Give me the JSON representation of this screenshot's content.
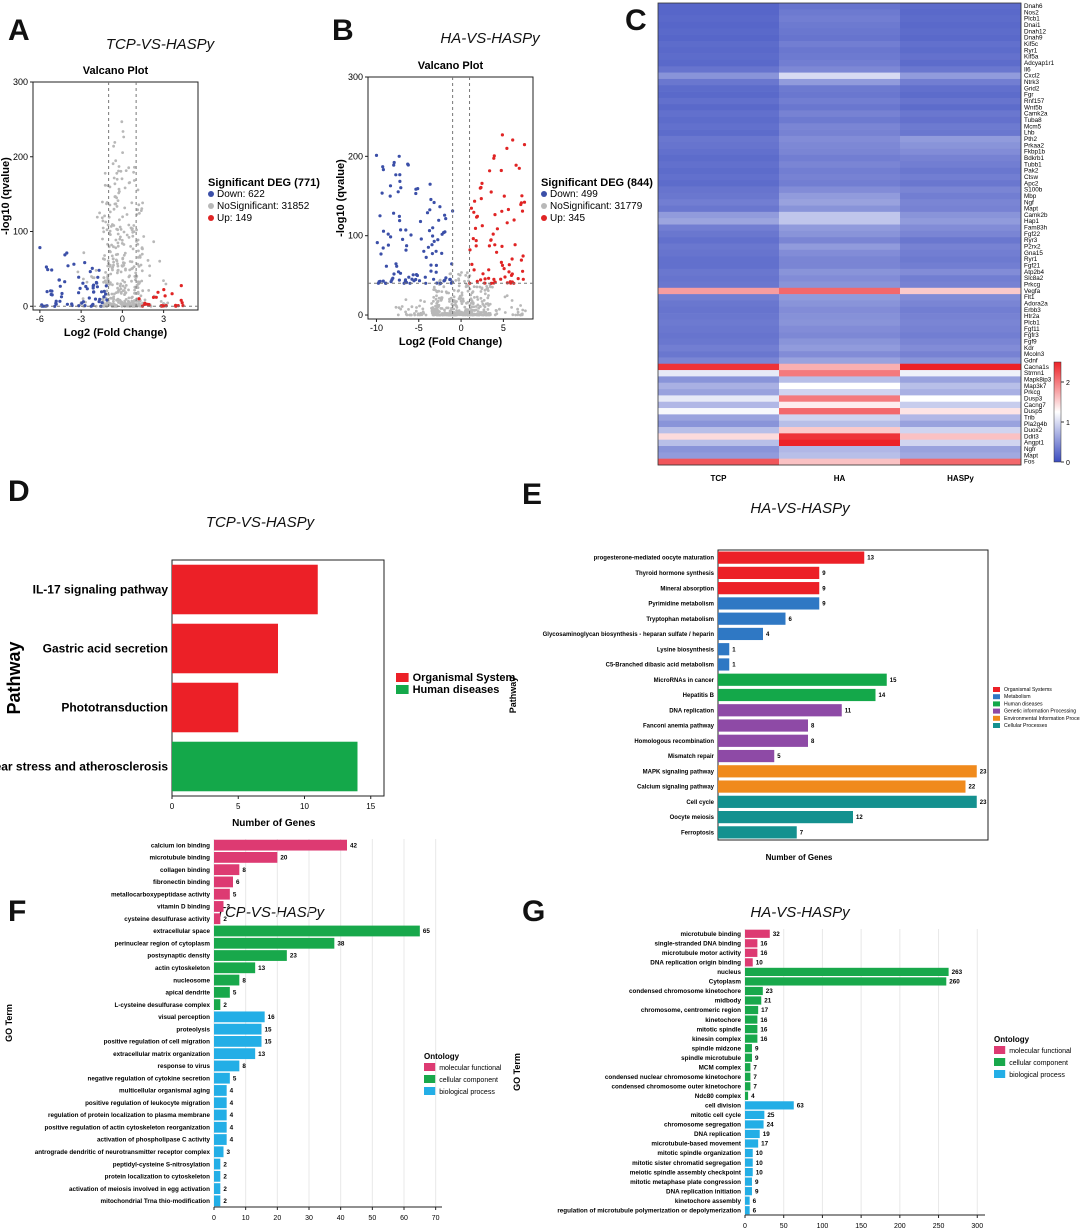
{
  "panels": {
    "A": {
      "letter": "A",
      "title": "TCP-VS-HASPy"
    },
    "B": {
      "letter": "B",
      "title": "HA-VS-HASPy"
    },
    "C": {
      "letter": "C"
    },
    "D": {
      "letter": "D",
      "title": "TCP-VS-HASPy"
    },
    "E": {
      "letter": "E",
      "title": "HA-VS-HASPy"
    },
    "F": {
      "letter": "F",
      "title": "TCP-VS-HASPy"
    },
    "G": {
      "letter": "G",
      "title": "HA-VS-HASPy"
    }
  },
  "colors": {
    "down": "#3b4fa8",
    "ns": "#b8b8b8",
    "up": "#e02424",
    "red": "#ec2027",
    "green": "#14a84a",
    "blue": "#2f78c4",
    "purple": "#8e4aa6",
    "orange": "#f08a1c",
    "teal": "#14918f",
    "magenta": "#dd3a72",
    "ggreen": "#18a84b",
    "cyan": "#23aee6"
  },
  "chart_data": [
    {
      "id": "A",
      "type": "scatter",
      "title": "Valcano Plot",
      "xlabel": "Log2 (Fold Change)",
      "ylabel": "-log10 (qvalue)",
      "xlim": [
        -6.5,
        5.5
      ],
      "ylim": [
        -5,
        300
      ],
      "xticks": [
        "-6",
        "-3",
        "0",
        "3"
      ],
      "xtick_values": [
        -6,
        -3,
        0,
        3
      ],
      "yticks": [
        "0",
        "100",
        "200",
        "300"
      ],
      "ytick_values": [
        0,
        100,
        200,
        300
      ],
      "legend_title": "Significant DEG (771)",
      "legend": [
        "Down: 622",
        "NoSignificant: 31852",
        "Up: 149"
      ]
    },
    {
      "id": "B",
      "type": "scatter",
      "title": "Valcano Plot",
      "xlabel": "Log2 (Fold Change)",
      "ylabel": "-log10 (qvalue)",
      "xlim": [
        -11,
        8.5
      ],
      "ylim": [
        -5,
        300
      ],
      "xticks": [
        "-10",
        "-5",
        "0",
        "5"
      ],
      "xtick_values": [
        -10,
        -5,
        0,
        5
      ],
      "yticks": [
        "0",
        "100",
        "200",
        "300"
      ],
      "ytick_values": [
        0,
        100,
        200,
        300
      ],
      "legend_title": "Significant DEG (844)",
      "legend": [
        "Down: 499",
        "NoSignificant: 31779",
        "Up: 345"
      ]
    },
    {
      "id": "C",
      "type": "heatmap",
      "columns": [
        "TCP",
        "HA",
        "HASPy"
      ],
      "rows": [
        "Dnah6",
        "Nos2",
        "Plcb1",
        "Dnai1",
        "Dnah12",
        "Dnah9",
        "Kif5c",
        "Ryr1",
        "Kif5a",
        "Adcyap1r1",
        "Il6",
        "Cxcl2",
        "Ntrk3",
        "Grid2",
        "Fgr",
        "Rnf157",
        "Wnt5b",
        "Camk2a",
        "Tuba8",
        "Mcm5",
        "Lhb",
        "Pth2",
        "Prkaa2",
        "Fkbp1b",
        "Bdkrb1",
        "Tubb1",
        "Pak2",
        "Ctsw",
        "Apc2",
        "S100b",
        "Mbp",
        "Ngf",
        "Mapt",
        "Camk2b",
        "Hap1",
        "Fam83h",
        "Fgf22",
        "Ryr3",
        "P2rx2",
        "Gna15",
        "Ryr1",
        "Fgf21",
        "Atp2b4",
        "Slc8a2",
        "Prkcg",
        "Vegfa",
        "Flt1",
        "Adora2a",
        "Erbb3",
        "Htr2a",
        "Plcb1",
        "Fgf11",
        "Fgfr3",
        "Fgf9",
        "Kdr",
        "Mcoln3",
        "Gdnf",
        "Cacna1s",
        "Strmn1",
        "Mapk8ip3",
        "Map3k7",
        "Prkcg",
        "Dusp3",
        "Cacng7",
        "Dusp5",
        "Trib",
        "Pla2g4b",
        "Duox2",
        "Ddit3",
        "Angpt1",
        "Ngfr",
        "Mapt",
        "Fos"
      ],
      "values": [
        [
          0.18,
          0.28,
          0.22
        ],
        [
          0.18,
          0.32,
          0.2
        ],
        [
          0.2,
          0.35,
          0.22
        ],
        [
          0.18,
          0.32,
          0.2
        ],
        [
          0.2,
          0.3,
          0.22
        ],
        [
          0.18,
          0.28,
          0.2
        ],
        [
          0.22,
          0.35,
          0.25
        ],
        [
          0.2,
          0.3,
          0.22
        ],
        [
          0.22,
          0.32,
          0.26
        ],
        [
          0.2,
          0.35,
          0.22
        ],
        [
          0.28,
          0.42,
          0.3
        ],
        [
          0.5,
          1.0,
          0.55
        ],
        [
          0.3,
          0.55,
          0.35
        ],
        [
          0.22,
          0.32,
          0.25
        ],
        [
          0.2,
          0.3,
          0.22
        ],
        [
          0.25,
          0.35,
          0.28
        ],
        [
          0.2,
          0.3,
          0.22
        ],
        [
          0.25,
          0.38,
          0.3
        ],
        [
          0.22,
          0.32,
          0.26
        ],
        [
          0.25,
          0.4,
          0.32
        ],
        [
          0.22,
          0.38,
          0.3
        ],
        [
          0.3,
          0.45,
          0.55
        ],
        [
          0.28,
          0.42,
          0.5
        ],
        [
          0.25,
          0.4,
          0.45
        ],
        [
          0.22,
          0.35,
          0.38
        ],
        [
          0.25,
          0.4,
          0.35
        ],
        [
          0.22,
          0.35,
          0.3
        ],
        [
          0.25,
          0.38,
          0.35
        ],
        [
          0.22,
          0.35,
          0.3
        ],
        [
          0.28,
          0.45,
          0.4
        ],
        [
          0.3,
          0.55,
          0.35
        ],
        [
          0.35,
          0.6,
          0.4
        ],
        [
          0.3,
          0.5,
          0.38
        ],
        [
          0.55,
          0.85,
          0.5
        ],
        [
          0.62,
          0.85,
          0.55
        ],
        [
          0.35,
          0.55,
          0.45
        ],
        [
          0.3,
          0.5,
          0.4
        ],
        [
          0.25,
          0.4,
          0.3
        ],
        [
          0.3,
          0.55,
          0.38
        ],
        [
          0.28,
          0.45,
          0.35
        ],
        [
          0.25,
          0.4,
          0.32
        ],
        [
          0.25,
          0.4,
          0.35
        ],
        [
          0.3,
          0.5,
          0.45
        ],
        [
          0.28,
          0.45,
          0.35
        ],
        [
          0.3,
          0.5,
          0.38
        ],
        [
          1.8,
          2.1,
          1.55
        ],
        [
          0.35,
          0.55,
          0.45
        ],
        [
          0.3,
          0.5,
          0.4
        ],
        [
          0.28,
          0.45,
          0.35
        ],
        [
          0.3,
          0.48,
          0.38
        ],
        [
          0.32,
          0.5,
          0.4
        ],
        [
          0.3,
          0.45,
          0.38
        ],
        [
          0.28,
          0.42,
          0.35
        ],
        [
          0.3,
          0.5,
          0.4
        ],
        [
          0.35,
          0.55,
          0.45
        ],
        [
          0.3,
          0.45,
          0.38
        ],
        [
          0.4,
          0.6,
          0.5
        ],
        [
          2.4,
          1.7,
          2.5
        ],
        [
          1.1,
          2.0,
          1.15
        ],
        [
          0.5,
          0.8,
          0.6
        ],
        [
          0.7,
          1.25,
          0.8
        ],
        [
          0.6,
          0.95,
          0.7
        ],
        [
          1.1,
          2.0,
          1.25
        ],
        [
          0.75,
          1.35,
          0.9
        ],
        [
          1.2,
          2.1,
          1.4
        ],
        [
          0.6,
          0.95,
          0.75
        ],
        [
          0.5,
          0.8,
          0.6
        ],
        [
          0.8,
          1.55,
          0.95
        ],
        [
          1.45,
          2.4,
          1.6
        ],
        [
          0.8,
          2.5,
          0.95
        ],
        [
          0.5,
          0.75,
          0.6
        ],
        [
          0.55,
          0.8,
          0.65
        ],
        [
          2.2,
          1.6,
          2.1
        ]
      ],
      "colorbar_ticks": [
        "0",
        "1",
        "2"
      ],
      "colorbar_tick_values": [
        0,
        1,
        2
      ],
      "colorbar_range": [
        0,
        2.5
      ]
    },
    {
      "id": "D",
      "type": "bar",
      "orientation": "horizontal",
      "ylabel": "Pathway",
      "xlabel": "Number of Genes",
      "categories": [
        "IL-17 signaling pathway",
        "Gastric acid secretion",
        "Phototransduction",
        "Fluid shear stress and atherosclerosis"
      ],
      "values": [
        11,
        8,
        5,
        14
      ],
      "groups": [
        "Organismal System",
        "Organismal System",
        "Organismal System",
        "Human diseases"
      ],
      "xlim": [
        0,
        16
      ],
      "xticks": [
        "0",
        "5",
        "10",
        "15"
      ],
      "xtick_values": [
        0,
        5,
        10,
        15
      ],
      "legend": [
        {
          "name": "Organismal System",
          "color": "#ec2027"
        },
        {
          "name": "Human diseases",
          "color": "#14a84a"
        }
      ]
    },
    {
      "id": "E",
      "type": "bar",
      "orientation": "horizontal",
      "ylabel": "Pathway",
      "xlabel": "Number of Genes",
      "categories": [
        "progesterone-mediated oocyte maturation",
        "Thyroid hormone synthesis",
        "Mineral absorption",
        "Pyrimidine metabolism",
        "Tryptophan metabolism",
        "Glycosaminoglycan biosynthesis - heparan sulfate / heparin",
        "Lysine biosynthesis",
        "C5-Branched dibasic acid metabolism",
        "MicroRNAs in cancer",
        "Hepatitis B",
        "DNA replication",
        "Fanconi anemia pathway",
        "Homologous recombination",
        "Mismatch repair",
        "MAPK signaling pathway",
        "Calcium signaling pathway",
        "Cell cycle",
        "Oocyte meiosis",
        "Ferroptosis"
      ],
      "values": [
        13,
        9,
        9,
        9,
        6,
        4,
        1,
        1,
        15,
        14,
        11,
        8,
        8,
        5,
        23,
        22,
        23,
        12,
        7
      ],
      "groups": [
        "Organismal Systems",
        "Organismal Systems",
        "Organismal Systems",
        "Metabolism",
        "Metabolism",
        "Metabolism",
        "Metabolism",
        "Metabolism",
        "Human diseases",
        "Human diseases",
        "Genetic information Processing",
        "Genetic information Processing",
        "Genetic information Processing",
        "Genetic information Processing",
        "Environmental Information Processing",
        "Environmental Information Processing",
        "Cellular Processes",
        "Cellular Processes",
        "Cellular Processes"
      ],
      "xlim": [
        0,
        24
      ],
      "legend": [
        {
          "name": "Organismal Systems",
          "color": "#ec2027"
        },
        {
          "name": "Metabolism",
          "color": "#2f78c4"
        },
        {
          "name": "Human diseases",
          "color": "#14a84a"
        },
        {
          "name": "Genetic information Processing",
          "color": "#8e4aa6"
        },
        {
          "name": "Environmental Information Processing",
          "color": "#f08a1c"
        },
        {
          "name": "Cellular Processes",
          "color": "#14918f"
        }
      ]
    },
    {
      "id": "F",
      "type": "bar",
      "orientation": "horizontal",
      "ylabel": "GO Term",
      "xlabel": "",
      "categories": [
        "calcium ion binding",
        "microtubule binding",
        "collagen binding",
        "fibronectin binding",
        "metallocarboxypeptidase activity",
        "vitamin D binding",
        "cysteine desulfurase activity",
        "extracellular space",
        "perinuclear region of cytoplasm",
        "postsynaptic density",
        "actin cytoskeleton",
        "nucleosome",
        "apical dendrite",
        "L-cysteine desulfurase complex",
        "visual perception",
        "proteolysis",
        "positive regulation of cell migration",
        "extracellular matrix organization",
        "response to virus",
        "negative regulation of cytokine secretion",
        "multicellular organismal aging",
        "positive regulation of leukocyte migration",
        "regulation of protein localization to plasma membrane",
        "positive regulation of actin cytoskeleton reorganization",
        "activation of phospholipase C activity",
        "antrograde dendritic of neurotransmitter receptor complex",
        "peptidyl-cysteine S-nitrosylation",
        "protein localization to cytoskeleton",
        "activation of meiosis involved in egg activation",
        "mitochondrial Trna thio-modification"
      ],
      "values": [
        42,
        20,
        8,
        6,
        5,
        3,
        2,
        65,
        38,
        23,
        13,
        8,
        5,
        2,
        16,
        15,
        15,
        13,
        8,
        5,
        4,
        4,
        4,
        4,
        4,
        3,
        2,
        2,
        2,
        2
      ],
      "groups": [
        "molecular functional",
        "molecular functional",
        "molecular functional",
        "molecular functional",
        "molecular functional",
        "molecular functional",
        "molecular functional",
        "cellular component",
        "cellular component",
        "cellular component",
        "cellular component",
        "cellular component",
        "cellular component",
        "cellular component",
        "biological process",
        "biological process",
        "biological process",
        "biological process",
        "biological process",
        "biological process",
        "biological process",
        "biological process",
        "biological process",
        "biological process",
        "biological process",
        "biological process",
        "biological process",
        "biological process",
        "biological process",
        "biological process"
      ],
      "xlim": [
        0,
        72
      ],
      "xticks": [
        "0",
        "10",
        "20",
        "30",
        "40",
        "50",
        "60",
        "70"
      ],
      "xtick_values": [
        0,
        10,
        20,
        30,
        40,
        50,
        60,
        70
      ],
      "legend_title": "Ontology",
      "legend": [
        {
          "name": "molecular functional",
          "color": "#dd3a72"
        },
        {
          "name": "cellular component",
          "color": "#18a84b"
        },
        {
          "name": "biological process",
          "color": "#23aee6"
        }
      ]
    },
    {
      "id": "G",
      "type": "bar",
      "orientation": "horizontal",
      "ylabel": "GO Term",
      "xlabel": "",
      "categories": [
        "microtubule binding",
        "single-stranded DNA binding",
        "microtubule motor activity",
        "DNA replication origin binding",
        "nucleus",
        "Cytoplasm",
        "condensed chromosome kinetochore",
        "midbody",
        "chromosome, centromeric region",
        "kinetochore",
        "mitotic spindle",
        "kinesin complex",
        "spindle midzone",
        "spindle microtubule",
        "MCM complex",
        "condensed nuclear chromosome kinetochore",
        "condensed chromosome outer kinetochore",
        "Ndc80 complex",
        "cell division",
        "mitotic cell cycle",
        "chromosome segregation",
        "DNA replication",
        "microtubule-based movement",
        "mitotic spindle organization",
        "mitotic sister chromatid segregation",
        "meiotic spindle assembly checkpoint",
        "mitotic metaphase plate congression",
        "DNA replication initiation",
        "kinetochore assembly",
        "regulation of microtubule polymerization or depolymerization"
      ],
      "values": [
        32,
        16,
        16,
        10,
        263,
        260,
        23,
        21,
        17,
        16,
        16,
        16,
        9,
        9,
        7,
        7,
        7,
        4,
        63,
        25,
        24,
        19,
        17,
        10,
        10,
        10,
        9,
        9,
        6,
        6
      ],
      "groups": [
        "molecular functional",
        "molecular functional",
        "molecular functional",
        "molecular functional",
        "cellular component",
        "cellular component",
        "cellular component",
        "cellular component",
        "cellular component",
        "cellular component",
        "cellular component",
        "cellular component",
        "cellular component",
        "cellular component",
        "cellular component",
        "cellular component",
        "cellular component",
        "cellular component",
        "biological process",
        "biological process",
        "biological process",
        "biological process",
        "biological process",
        "biological process",
        "biological process",
        "biological process",
        "biological process",
        "biological process",
        "biological process",
        "biological process"
      ],
      "xlim": [
        0,
        310
      ],
      "xticks": [
        "0",
        "50",
        "100",
        "150",
        "200",
        "250",
        "300"
      ],
      "xtick_values": [
        0,
        50,
        100,
        150,
        200,
        250,
        300
      ],
      "legend_title": "Ontology",
      "legend": [
        {
          "name": "molecular functional",
          "color": "#dd3a72"
        },
        {
          "name": "cellular component",
          "color": "#18a84b"
        },
        {
          "name": "biological process",
          "color": "#23aee6"
        }
      ]
    }
  ]
}
